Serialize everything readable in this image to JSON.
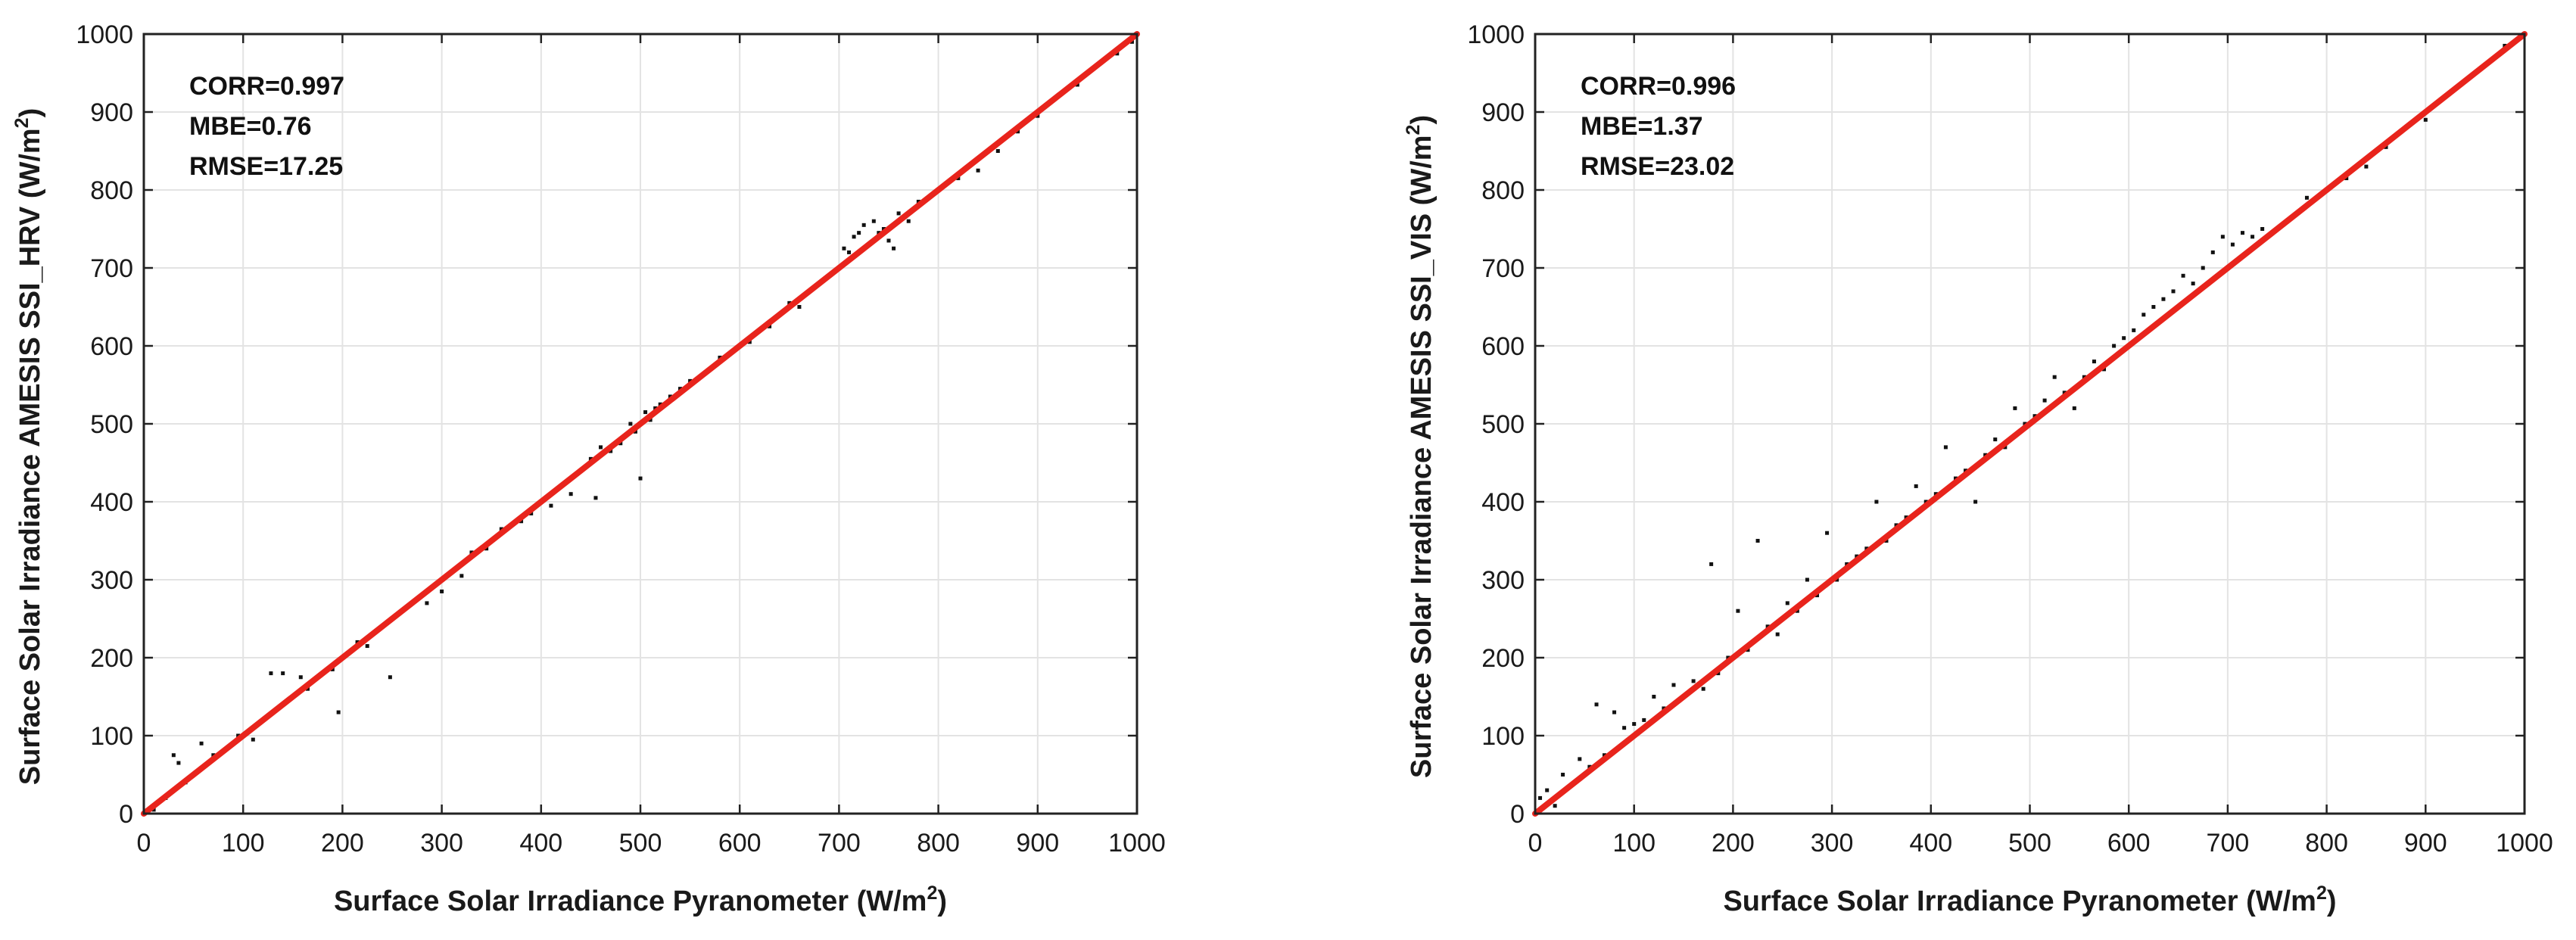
{
  "chart_data": [
    {
      "type": "scatter",
      "xlim": [
        0,
        1000
      ],
      "ylim": [
        0,
        1000
      ],
      "xticks": [
        "0",
        "100",
        "200",
        "300",
        "400",
        "500",
        "600",
        "700",
        "800",
        "900",
        "1000"
      ],
      "yticks": [
        "0",
        "100",
        "200",
        "300",
        "400",
        "500",
        "600",
        "700",
        "800",
        "900",
        "1000"
      ],
      "xlabel": {
        "main": "Surface Solar Irradiance Pyranometer (W/m",
        "sup": "2",
        "tail": ")"
      },
      "ylabel": {
        "main": "Surface Solar Irradiance AMESIS SSI_HRV (W/m",
        "sup": "2",
        "tail": ")"
      },
      "stats": {
        "corr": "CORR=0.997",
        "mbe": "MBE=0.76",
        "rmse": "RMSE=17.25"
      },
      "fit_line": {
        "x": [
          0,
          1000
        ],
        "y": [
          0,
          1000
        ],
        "color": "#e8241c"
      },
      "point_color": "#111111",
      "series": [
        {
          "name": "samples",
          "x": [
            10,
            22,
            30,
            35,
            42,
            58,
            70,
            85,
            95,
            110,
            120,
            128,
            135,
            140,
            150,
            158,
            165,
            175,
            190,
            196,
            205,
            215,
            225,
            240,
            248,
            260,
            275,
            285,
            295,
            300,
            310,
            320,
            330,
            345,
            360,
            370,
            380,
            390,
            400,
            410,
            420,
            430,
            440,
            450,
            455,
            460,
            470,
            480,
            490,
            495,
            500,
            505,
            510,
            515,
            520,
            530,
            540,
            550,
            560,
            570,
            580,
            590,
            600,
            610,
            620,
            630,
            640,
            650,
            660,
            670,
            680,
            690,
            700,
            705,
            710,
            715,
            720,
            725,
            730,
            735,
            740,
            745,
            750,
            755,
            760,
            770,
            780,
            800,
            820,
            840,
            860,
            880,
            900,
            920,
            940,
            960,
            980,
            995
          ],
          "y": [
            5,
            20,
            75,
            65,
            40,
            90,
            75,
            85,
            100,
            95,
            120,
            180,
            135,
            180,
            150,
            175,
            160,
            175,
            185,
            130,
            205,
            220,
            215,
            240,
            175,
            260,
            275,
            270,
            295,
            285,
            310,
            305,
            335,
            340,
            365,
            370,
            375,
            385,
            400,
            395,
            420,
            410,
            440,
            455,
            405,
            470,
            465,
            475,
            500,
            490,
            430,
            515,
            505,
            520,
            525,
            535,
            545,
            555,
            560,
            570,
            585,
            590,
            600,
            605,
            620,
            625,
            640,
            655,
            650,
            670,
            680,
            690,
            700,
            725,
            720,
            740,
            745,
            755,
            730,
            760,
            745,
            750,
            735,
            725,
            770,
            760,
            785,
            800,
            815,
            825,
            850,
            875,
            895,
            920,
            935,
            960,
            975,
            990
          ]
        }
      ]
    },
    {
      "type": "scatter",
      "xlim": [
        0,
        1000
      ],
      "ylim": [
        0,
        1000
      ],
      "xticks": [
        "0",
        "100",
        "200",
        "300",
        "400",
        "500",
        "600",
        "700",
        "800",
        "900",
        "1000"
      ],
      "yticks": [
        "0",
        "100",
        "200",
        "300",
        "400",
        "500",
        "600",
        "700",
        "800",
        "900",
        "1000"
      ],
      "xlabel": {
        "main": "Surface Solar Irradiance Pyranometer (W/m",
        "sup": "2",
        "tail": ")"
      },
      "ylabel": {
        "main": "Surface Solar Irradiance AMESIS SSI_VIS (W/m",
        "sup": "2",
        "tail": ")"
      },
      "stats": {
        "corr": "CORR=0.996",
        "mbe": "MBE=1.37",
        "rmse": "RMSE=23.02"
      },
      "fit_line": {
        "x": [
          0,
          1000
        ],
        "y": [
          0,
          1000
        ],
        "color": "#e8241c"
      },
      "point_color": "#111111",
      "series": [
        {
          "name": "samples",
          "x": [
            5,
            12,
            20,
            28,
            35,
            45,
            55,
            62,
            70,
            80,
            90,
            100,
            110,
            120,
            130,
            140,
            150,
            160,
            170,
            178,
            185,
            195,
            205,
            215,
            225,
            235,
            245,
            255,
            265,
            275,
            285,
            295,
            305,
            315,
            325,
            335,
            345,
            355,
            365,
            375,
            385,
            395,
            405,
            415,
            425,
            435,
            445,
            455,
            465,
            475,
            485,
            495,
            505,
            515,
            525,
            535,
            545,
            555,
            565,
            575,
            585,
            595,
            605,
            615,
            625,
            635,
            645,
            655,
            665,
            675,
            685,
            695,
            705,
            715,
            725,
            735,
            745,
            760,
            780,
            800,
            820,
            840,
            860,
            880,
            900,
            920,
            940,
            960,
            980,
            995
          ],
          "y": [
            20,
            30,
            10,
            50,
            35,
            70,
            60,
            140,
            75,
            130,
            110,
            115,
            120,
            150,
            135,
            165,
            150,
            170,
            160,
            320,
            180,
            200,
            260,
            210,
            350,
            240,
            230,
            270,
            260,
            300,
            280,
            360,
            300,
            320,
            330,
            340,
            400,
            350,
            370,
            380,
            420,
            400,
            410,
            470,
            430,
            440,
            400,
            460,
            480,
            470,
            520,
            500,
            510,
            530,
            560,
            540,
            520,
            560,
            580,
            570,
            600,
            610,
            620,
            640,
            650,
            660,
            670,
            690,
            680,
            700,
            720,
            740,
            730,
            745,
            740,
            750,
            745,
            760,
            790,
            800,
            815,
            830,
            855,
            880,
            890,
            920,
            940,
            960,
            985,
            995
          ]
        }
      ]
    }
  ]
}
